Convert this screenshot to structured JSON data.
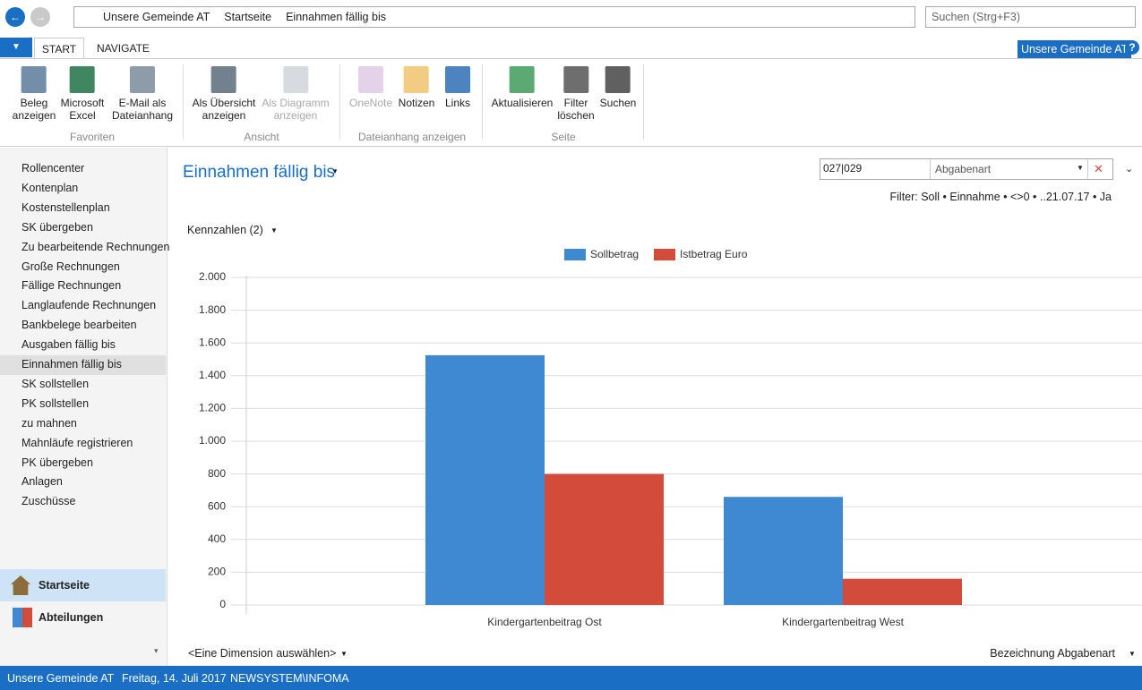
{
  "nav": {
    "breadcrumb": [
      "Unsere Gemeinde AT",
      "Startseite",
      "Einnahmen fällig bis"
    ],
    "search_placeholder": "Suchen (Strg+F3)"
  },
  "ribbon": {
    "tabs": [
      "START",
      "NAVIGATE"
    ],
    "company": "Unsere Gemeinde AT",
    "groups": [
      {
        "name": "Favoriten",
        "buttons": [
          [
            "Beleg",
            "anzeigen"
          ],
          [
            "Microsoft",
            "Excel"
          ],
          [
            "E-Mail als",
            "Dateianhang"
          ]
        ]
      },
      {
        "name": "Ansicht",
        "buttons": [
          [
            "Als Übersicht",
            "anzeigen"
          ],
          [
            "Als Diagramm",
            "anzeigen"
          ]
        ]
      },
      {
        "name": "Dateianhang anzeigen",
        "buttons": [
          [
            "OneNote"
          ],
          [
            "Notizen"
          ],
          [
            "Links"
          ]
        ]
      },
      {
        "name": "Seite",
        "buttons": [
          [
            "Aktualisieren"
          ],
          [
            "Filter",
            "löschen"
          ],
          [
            "Suchen"
          ]
        ]
      }
    ]
  },
  "sidebar": {
    "items": [
      "Rollencenter",
      "Kontenplan",
      "Kostenstellenplan",
      "SK übergeben",
      "Zu bearbeitende Rechnungen",
      "Große Rechnungen",
      "Fällige Rechnungen",
      "Langlaufende Rechnungen",
      "Bankbelege bearbeiten",
      "Ausgaben fällig bis",
      "Einnahmen fällig bis",
      "SK sollstellen",
      "PK sollstellen",
      "zu mahnen",
      "Mahnläufe registrieren",
      "PK übergeben",
      "Anlagen",
      "Zuschüsse"
    ],
    "selected": 10,
    "sections": [
      "Startseite",
      "Abteilungen"
    ]
  },
  "content": {
    "title": "Einnahmen fällig bis",
    "filter_value": "027|029",
    "filter_field": "Abgabenart",
    "filter_text": "Filter: Soll • Einnahme • <>0 • ..21.07.17 • Ja",
    "measures": "Kennzahlen (2)",
    "dimension": "<Eine Dimension auswählen>",
    "x_axis_field": "Bezeichnung Abgabenart"
  },
  "chart_data": {
    "type": "bar",
    "legend_position": "top",
    "grid": true,
    "categories": [
      "Kindergartenbeitrag Ost",
      "Kindergartenbeitrag West"
    ],
    "series": [
      {
        "name": "Sollbetrag",
        "color": "#3f88d2",
        "values": [
          1525,
          660
        ]
      },
      {
        "name": "Istbetrag Euro",
        "color": "#d34b3b",
        "values": [
          800,
          160
        ]
      }
    ],
    "ylim": [
      0,
      2000
    ],
    "yticks": [
      0,
      200,
      400,
      600,
      800,
      {
        "value": 1000,
        "label": "1.000"
      },
      {
        "value": 1200,
        "label": "1.200"
      },
      {
        "value": 1400,
        "label": "1.400"
      },
      {
        "value": 1600,
        "label": "1.600"
      },
      {
        "value": 1800,
        "label": "1.800"
      },
      {
        "value": 2000,
        "label": "2.000"
      }
    ]
  },
  "status": {
    "company": "Unsere Gemeinde AT",
    "date": "Freitag, 14. Juli 2017",
    "user": "NEWSYSTEM\\INFOMA"
  }
}
